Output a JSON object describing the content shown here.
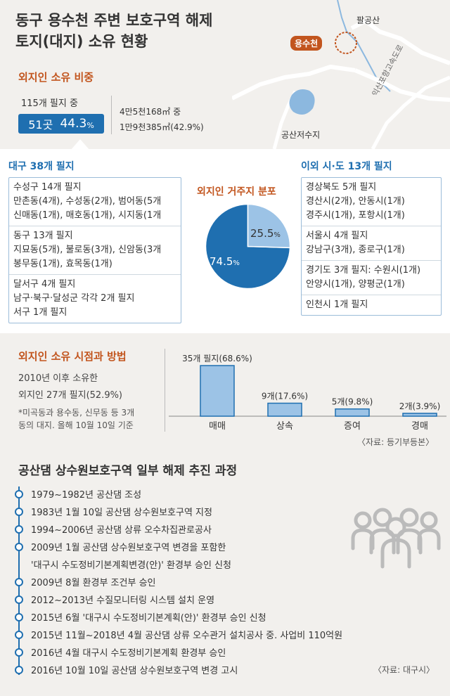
{
  "title": {
    "line1": "동구 용수천 주변 보호구역 해제",
    "line2": "토지(대지) 소유 현황"
  },
  "map": {
    "palgongsan": "팔공산",
    "yongsucheon": "용수천",
    "gongsan_reservoir": "공산저수지",
    "highway": "익산포항고속도로"
  },
  "outsider_share": {
    "heading": "외지인 소유 비중",
    "total_parcels": "115개 필지 중",
    "count": "51곳",
    "percent": "44.3",
    "percent_sign": "%",
    "area_total": "4만5천168㎡ 중",
    "area_outsider": "1만9천385㎡(42.9%)"
  },
  "residence": {
    "heading": "외지인 거주지 분포",
    "daegu": {
      "title": "대구 38개 필지",
      "groups": [
        [
          "수성구 14개 필지",
          "만촌동(4개), 수성동(2개), 범어동(5개",
          "신매동(1개), 매호동(1개), 시지동(1개"
        ],
        [
          "동구 13개 필지",
          "지묘동(5개), 불로동(3개), 신암동(3개",
          "봉무동(1개), 효목동(1개)"
        ],
        [
          "달서구 4개 필지",
          "남구·북구·달성군 각각 2개 필지",
          "서구 1개 필지"
        ]
      ]
    },
    "others": {
      "title": "이외 시·도 13개 필지",
      "groups": [
        [
          "경상북도 5개 필지",
          "경산시(2개), 안동시(1개)",
          "경주시(1개), 포항시(1개)"
        ],
        [
          "서울시 4개 필지",
          "강남구(3개), 종로구(1개)"
        ],
        [
          "경기도 3개 필지: 수원시(1개)",
          "안양시(1개), 양평군(1개)"
        ],
        [
          "인천시 1개 필지"
        ]
      ]
    },
    "pie": {
      "daegu_pct": "74.5",
      "other_pct": "25.5",
      "sign": "%",
      "values": [
        74.5,
        25.5
      ],
      "colors": [
        "#1f6fb0",
        "#9cc3e6"
      ]
    }
  },
  "timing": {
    "heading": "외지인 소유 시점과 방법",
    "line1": "2010년 이후 소유한",
    "line2": "외지인 27개 필지(52.9%)",
    "note1": "*미곡동과 용수동, 신무동 등 3개",
    "note2": "동의 대지. 올해 10월 10일 기준",
    "source": "〈자료: 등기부등본〉"
  },
  "chart_data": {
    "type": "bar",
    "categories": [
      "매매",
      "상속",
      "증여",
      "경매"
    ],
    "values": [
      68.6,
      17.6,
      9.8,
      3.9
    ],
    "labels": [
      "35개 필지(68.6%)",
      "9개(17.6%)",
      "5개(9.8%)",
      "2개(3.9%)"
    ],
    "ylim": [
      0,
      68.6
    ],
    "colors": {
      "fill": "#9cc3e6",
      "stroke": "#1f6fb0"
    }
  },
  "timeline": {
    "heading": "공산댐 상수원보호구역 일부 해제 추진 과정",
    "items": [
      "1979~1982년 공산댐 조성",
      "1983년 1월 10일 공산댐 상수원보호구역 지정",
      "1994~2006년 공산댐 상류 오수차집관로공사",
      "2009년 1월 공산댐 상수원보호구역 변경을 포함한",
      "'대구시 수도정비기본계획변경(안)' 환경부 승인 신청",
      "2009년 8월 환경부 조건부 승인",
      "2012~2013년 수질모니터링 시스템 설치 운영",
      "2015년 6월 '대구시 수도정비기본계획(안)' 환경부 승인 신청",
      "2015년 11월~2018년 4월 공산댐 상류 오수관거 설치공사 중. 사업비 110억원",
      "2016년 4월 대구시 수도정비기본계획 환경부 승인",
      "2016년 10월 10일 공산댐 상수원보호구역 변경 고시"
    ],
    "source": "〈자료: 대구시〉"
  }
}
